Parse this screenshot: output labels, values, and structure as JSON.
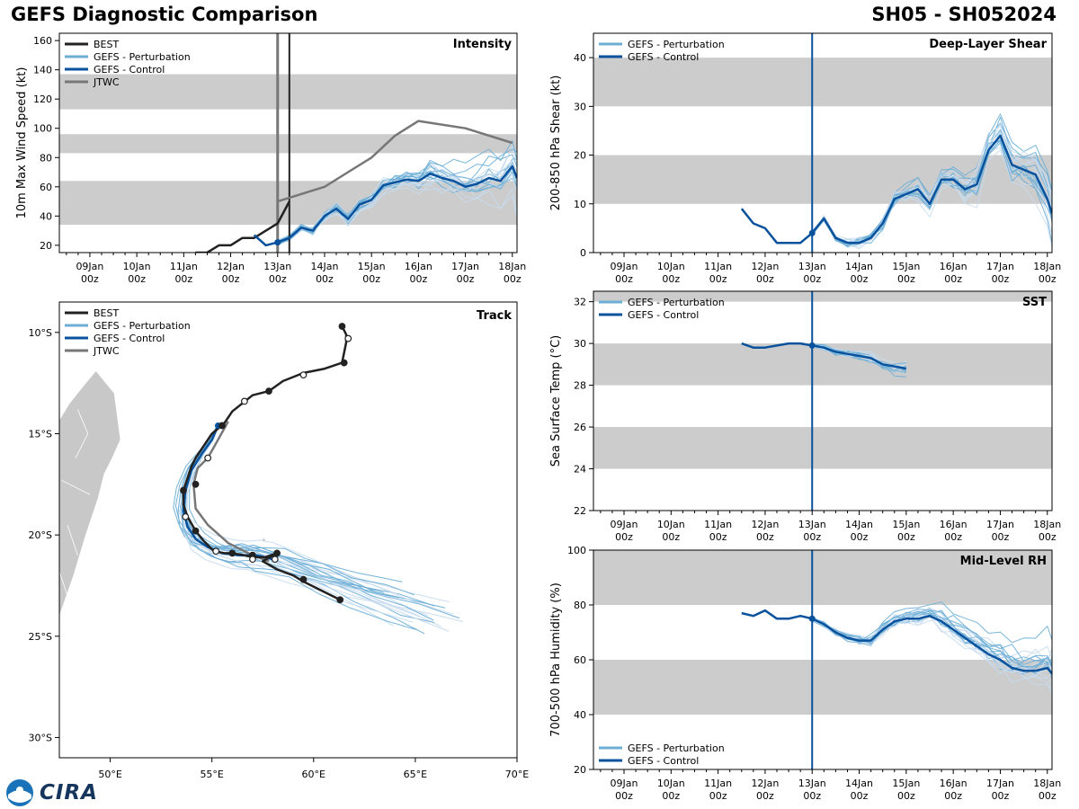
{
  "header": {
    "title": "GEFS Diagnostic Comparison",
    "storm": "SH05 - SH052024"
  },
  "colors": {
    "best": "#222222",
    "perturbation": "#6baed6",
    "perturbation_light": "#c6dbef",
    "control": "#08519c",
    "jtwc": "#777777",
    "band": "#cccccc",
    "land": "#c8c8c8"
  },
  "time_ticks": [
    "09Jan\n00z",
    "10Jan\n00z",
    "11Jan\n00z",
    "12Jan\n00z",
    "13Jan\n00z",
    "14Jan\n00z",
    "15Jan\n00z",
    "16Jan\n00z",
    "17Jan\n00z",
    "18Jan\n00z"
  ],
  "chart_data": [
    {
      "id": "intensity",
      "type": "line",
      "title": "Intensity",
      "ylabel": "10m Max Wind Speed (kt)",
      "xlim": [
        -0.65,
        9.1
      ],
      "ylim": [
        15,
        165
      ],
      "yticks": [
        20,
        40,
        60,
        80,
        100,
        120,
        140,
        160
      ],
      "bands": [
        [
          34,
          64
        ],
        [
          83,
          96
        ],
        [
          113,
          137
        ]
      ],
      "vlines": [
        {
          "x": 4.0,
          "color": "gray"
        },
        {
          "x": 4.25,
          "color": "black"
        }
      ],
      "legend": [
        "BEST",
        "GEFS - Perturbation",
        "GEFS - Control",
        "JTWC"
      ],
      "series": [
        {
          "name": "BEST",
          "x": [
            2.25,
            2.5,
            2.75,
            3.0,
            3.25,
            3.5,
            3.75,
            4.0,
            4.25
          ],
          "y": [
            15,
            15,
            20,
            20,
            25,
            25,
            30,
            35,
            50
          ]
        },
        {
          "name": "GEFS - Control",
          "x": [
            3.5,
            3.75,
            4.0,
            4.25,
            4.5,
            4.75,
            5.0,
            5.25,
            5.5,
            5.75,
            6.0,
            6.25,
            6.5,
            6.75,
            7.0,
            7.25,
            7.5,
            7.75,
            8.0,
            8.25,
            8.5,
            8.75,
            9.0,
            9.1
          ],
          "y": [
            27,
            20,
            22,
            25,
            32,
            30,
            40,
            45,
            38,
            48,
            51,
            61,
            63,
            65,
            64,
            69,
            66,
            64,
            60,
            62,
            66,
            64,
            74,
            66
          ]
        },
        {
          "name": "JTWC",
          "x": [
            4.0,
            4.5,
            5.0,
            5.5,
            6.0,
            6.5,
            7.0,
            8.0,
            9.0
          ],
          "y": [
            50,
            55,
            60,
            70,
            80,
            95,
            105,
            100,
            90
          ]
        }
      ]
    },
    {
      "id": "shear",
      "type": "line",
      "title": "Deep-Layer Shear",
      "ylabel": "200-850 hPa Shear (kt)",
      "xlim": [
        -0.65,
        9.1
      ],
      "ylim": [
        0,
        45
      ],
      "yticks": [
        0,
        10,
        20,
        30,
        40
      ],
      "bands": [
        [
          10,
          20
        ],
        [
          30,
          40
        ]
      ],
      "vlines": [
        {
          "x": 4.0,
          "color": "blue"
        }
      ],
      "legend": [
        "GEFS - Perturbation",
        "GEFS - Control"
      ],
      "series": [
        {
          "name": "GEFS - Control",
          "x": [
            2.5,
            2.75,
            3.0,
            3.25,
            3.5,
            3.75,
            4.0,
            4.25,
            4.5,
            4.75,
            5.0,
            5.25,
            5.5,
            5.75,
            6.0,
            6.25,
            6.5,
            6.75,
            7.0,
            7.25,
            7.5,
            7.75,
            8.0,
            8.25,
            8.5,
            8.75,
            9.0,
            9.1
          ],
          "y": [
            9,
            6,
            5,
            2,
            2,
            2,
            4,
            7,
            3,
            2,
            2,
            3,
            6,
            11,
            12,
            13,
            10,
            15,
            15,
            13,
            14,
            21,
            24,
            18,
            17,
            16,
            11,
            8
          ]
        }
      ]
    },
    {
      "id": "sst",
      "type": "line",
      "title": "SST",
      "ylabel": "Sea Surface Temp (°C)",
      "xlim": [
        -0.65,
        9.1
      ],
      "ylim": [
        22,
        32.5
      ],
      "yticks": [
        22,
        24,
        26,
        28,
        30,
        32
      ],
      "bands": [
        [
          24,
          26
        ],
        [
          28,
          30
        ],
        [
          32,
          34
        ]
      ],
      "vlines": [
        {
          "x": 4.0,
          "color": "blue"
        }
      ],
      "legend": [
        "GEFS - Perturbation",
        "GEFS - Control"
      ],
      "series": [
        {
          "name": "GEFS - Control",
          "x": [
            2.5,
            2.75,
            3.0,
            3.25,
            3.5,
            3.75,
            4.0,
            4.25,
            4.5,
            4.75,
            5.0,
            5.25,
            5.5,
            5.75,
            6.0
          ],
          "y": [
            30.0,
            29.8,
            29.8,
            29.9,
            30.0,
            30.0,
            29.9,
            29.8,
            29.6,
            29.5,
            29.4,
            29.3,
            29.0,
            28.9,
            28.8
          ]
        }
      ]
    },
    {
      "id": "rh",
      "type": "line",
      "title": "Mid-Level RH",
      "ylabel": "700-500 hPa Humidity (%)",
      "xlim": [
        -0.65,
        9.1
      ],
      "ylim": [
        20,
        100
      ],
      "yticks": [
        20,
        40,
        60,
        80,
        100
      ],
      "bands": [
        [
          40,
          60
        ],
        [
          80,
          100
        ]
      ],
      "vlines": [
        {
          "x": 4.0,
          "color": "blue"
        }
      ],
      "legend": [
        "GEFS - Perturbation",
        "GEFS - Control"
      ],
      "series": [
        {
          "name": "GEFS - Control",
          "x": [
            2.5,
            2.75,
            3.0,
            3.25,
            3.5,
            3.75,
            4.0,
            4.25,
            4.5,
            4.75,
            5.0,
            5.25,
            5.5,
            5.75,
            6.0,
            6.25,
            6.5,
            6.75,
            7.0,
            7.25,
            7.5,
            7.75,
            8.0,
            8.25,
            8.5,
            8.75,
            9.0,
            9.1
          ],
          "y": [
            77,
            76,
            78,
            75,
            75,
            76,
            75,
            73,
            70,
            68,
            67,
            67,
            71,
            74,
            75,
            75,
            76,
            74,
            71,
            68,
            65,
            62,
            60,
            57,
            56,
            56,
            57,
            55
          ]
        }
      ]
    },
    {
      "id": "track",
      "type": "line",
      "title": "Track",
      "xlim": [
        47.5,
        70
      ],
      "ylim": [
        -31,
        -8.5
      ],
      "xticks": [
        50,
        55,
        60,
        65,
        70
      ],
      "xticklabels": [
        "50°E",
        "55°E",
        "60°E",
        "65°E",
        "70°E"
      ],
      "yticks": [
        -10,
        -15,
        -20,
        -25,
        -30
      ],
      "yticklabels": [
        "10°S",
        "15°S",
        "20°S",
        "25°S",
        "30°S"
      ],
      "legend": [
        "BEST",
        "GEFS - Perturbation",
        "GEFS - Control",
        "JTWC"
      ],
      "series": [
        {
          "name": "BEST",
          "lon": [
            61.4,
            61.6,
            61.6,
            61.4,
            60.5,
            59.5,
            58.5,
            57.8,
            57.0,
            56.5,
            56.0,
            55.6,
            55.0,
            54.6,
            54.2,
            54.0,
            53.8,
            53.6,
            53.6,
            53.8,
            54.2,
            54.6,
            55.1,
            55.6,
            56.0,
            56.6,
            57.0,
            57.6,
            58.2,
            57.5,
            58.2,
            59.0,
            59.5,
            61.3
          ],
          "lat": [
            -9.7,
            -10.1,
            -10.5,
            -11.5,
            -11.8,
            -12.0,
            -12.4,
            -12.9,
            -13.1,
            -13.5,
            -13.9,
            -14.5,
            -15.0,
            -15.6,
            -16.2,
            -16.6,
            -17.2,
            -17.8,
            -18.5,
            -19.1,
            -19.8,
            -20.3,
            -20.8,
            -20.9,
            -20.9,
            -21.0,
            -21.1,
            -21.1,
            -20.9,
            -21.3,
            -21.7,
            -22.0,
            -22.3,
            -23.2
          ],
          "markers": [
            [
              61.4,
              -9.7,
              "filled"
            ],
            [
              61.7,
              -10.3,
              "open"
            ],
            [
              61.5,
              -11.5,
              "filled"
            ],
            [
              59.5,
              -12.1,
              "open"
            ],
            [
              57.8,
              -12.9,
              "filled"
            ],
            [
              56.6,
              -13.4,
              "open"
            ],
            [
              55.5,
              -14.6,
              "filled"
            ],
            [
              54.8,
              -16.2,
              "open"
            ],
            [
              54.2,
              -17.5,
              "filled"
            ],
            [
              53.6,
              -17.8,
              "filled"
            ],
            [
              53.7,
              -19.1,
              "open"
            ],
            [
              54.2,
              -19.8,
              "filled"
            ],
            [
              55.2,
              -20.8,
              "open"
            ],
            [
              56.0,
              -20.9,
              "filled"
            ],
            [
              57.0,
              -21.0,
              "filled"
            ],
            [
              57.0,
              -21.2,
              "open"
            ],
            [
              58.1,
              -21.2,
              "open"
            ],
            [
              58.2,
              -20.9,
              "filled"
            ],
            [
              59.5,
              -22.2,
              "filled"
            ],
            [
              61.3,
              -23.2,
              "filled"
            ]
          ]
        },
        {
          "name": "GEFS - Control",
          "lon": [
            55.3,
            55.0,
            54.5,
            54.0,
            53.7,
            53.6,
            53.8,
            54.2,
            54.8,
            55.5,
            56.3,
            57.2,
            58.0
          ],
          "lat": [
            -14.6,
            -15.3,
            -16.0,
            -16.8,
            -17.8,
            -18.8,
            -19.6,
            -20.2,
            -20.6,
            -20.9,
            -21.0,
            -21.0,
            -21.2
          ]
        },
        {
          "name": "JTWC",
          "lon": [
            55.8,
            55.3,
            54.8,
            54.3,
            54.1,
            54.2,
            54.8,
            55.8,
            57.0,
            57.8
          ],
          "lat": [
            -14.4,
            -15.3,
            -16.2,
            -16.7,
            -17.5,
            -18.7,
            -19.5,
            -20.4,
            -21.0,
            -21.3
          ]
        }
      ]
    }
  ],
  "logo": {
    "text": "CIRA",
    "badge": "NOAA"
  }
}
